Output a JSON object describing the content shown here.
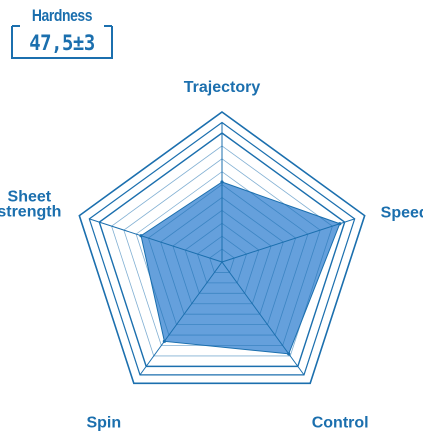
{
  "hardness": {
    "label": "Hardness",
    "value": "47,5±3"
  },
  "chart_data": {
    "type": "radar",
    "axes": [
      {
        "key": "trajectory",
        "label": "Trajectory"
      },
      {
        "key": "speed",
        "label": "Speed"
      },
      {
        "key": "control",
        "label": "Control"
      },
      {
        "key": "spin",
        "label": "Spin"
      },
      {
        "key": "sheet_strength",
        "label": "Sheet\nstrength"
      }
    ],
    "range": [
      0,
      10
    ],
    "rings": 10,
    "values": [
      6.2,
      9.6,
      8.8,
      7.6,
      6.6
    ],
    "colors": {
      "fill": "#4a8fd6",
      "stroke": "#1b6fae",
      "grid": "#1b6fae",
      "text": "#1b6fae"
    }
  }
}
